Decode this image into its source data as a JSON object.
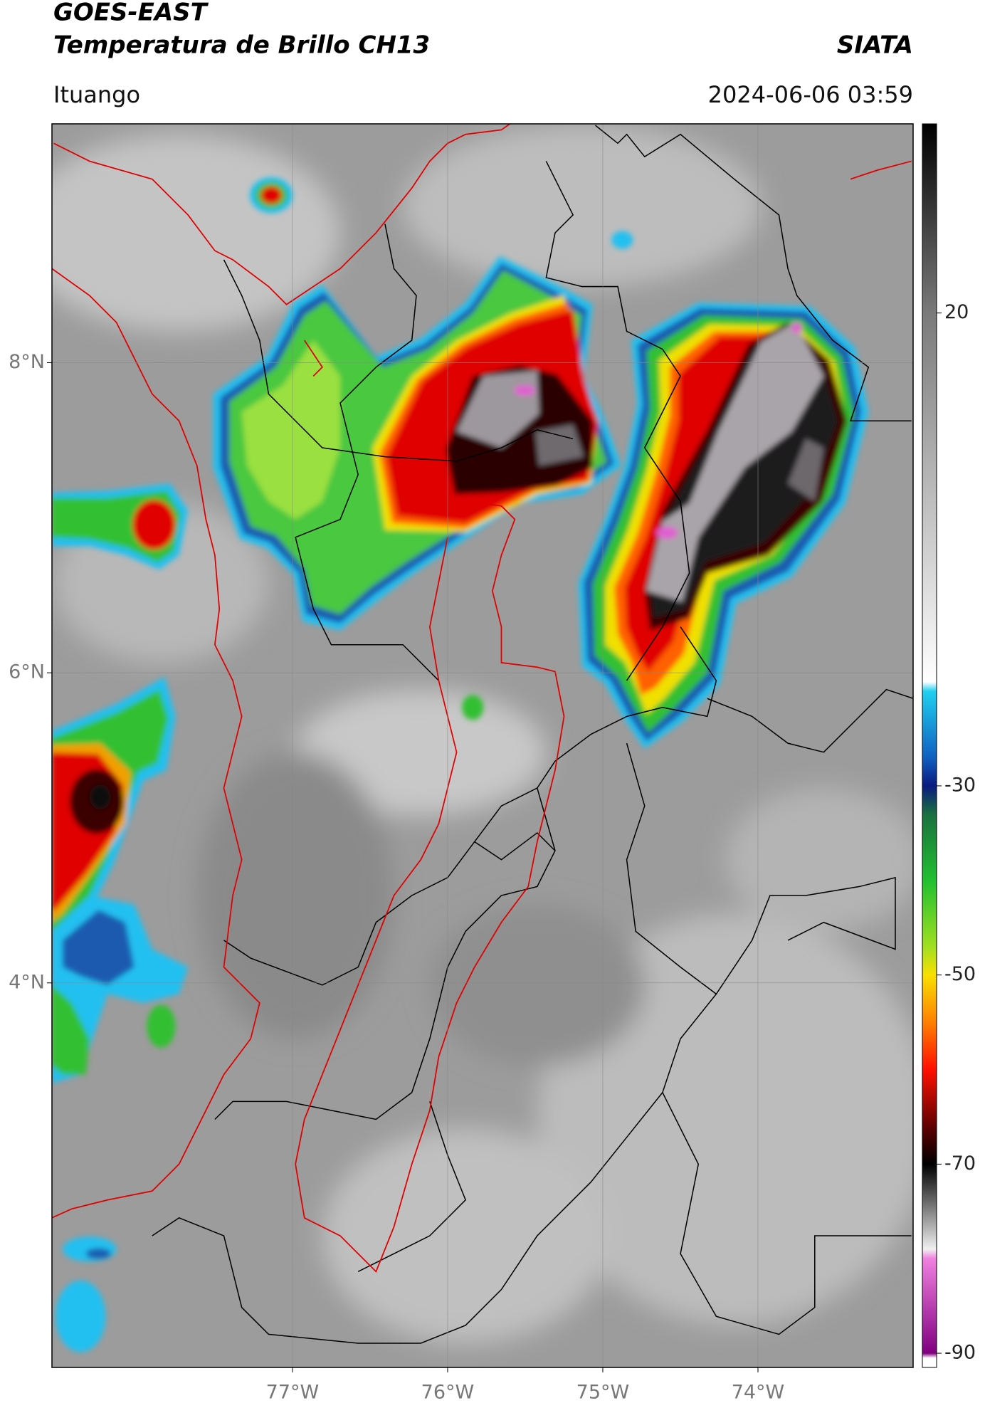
{
  "chart_data": {
    "type": "map",
    "title_lines": [
      "GOES-EAST",
      "Temperatura de Brillo CH13"
    ],
    "source": "SIATA",
    "location": "Ituango",
    "timestamp": "2024-06-06 03:59",
    "xlim": [
      -78.55,
      -73.0
    ],
    "ylim": [
      1.52,
      9.54
    ],
    "xticks": [
      {
        "value": -77,
        "label": "77°W"
      },
      {
        "value": -76,
        "label": "76°W"
      },
      {
        "value": -75,
        "label": "75°W"
      },
      {
        "value": -74,
        "label": "74°W"
      }
    ],
    "yticks": [
      {
        "value": 8,
        "label": "8°N"
      },
      {
        "value": 6,
        "label": "6°N"
      },
      {
        "value": 4,
        "label": "4°N"
      }
    ],
    "grid": true,
    "colorbar": {
      "lim": [
        -91.5,
        40
      ],
      "ticks": [
        20,
        -30,
        -50,
        -70,
        -90
      ],
      "colormap": [
        {
          "value": 40,
          "color": "#000000"
        },
        {
          "value": 20,
          "color": "#7a7a7a"
        },
        {
          "value": -19,
          "color": "#ffffff"
        },
        {
          "value": -20,
          "color": "#20d0f0"
        },
        {
          "value": -27,
          "color": "#1060c0"
        },
        {
          "value": -30,
          "color": "#0a1a80"
        },
        {
          "value": -33,
          "color": "#1a7040"
        },
        {
          "value": -40,
          "color": "#20c030"
        },
        {
          "value": -47,
          "color": "#a0e020"
        },
        {
          "value": -50,
          "color": "#f8e000"
        },
        {
          "value": -55,
          "color": "#ff8000"
        },
        {
          "value": -60,
          "color": "#ff1000"
        },
        {
          "value": -66,
          "color": "#600000"
        },
        {
          "value": -70,
          "color": "#000000"
        },
        {
          "value": -76,
          "color": "#a0a0a0"
        },
        {
          "value": -79,
          "color": "#f0f0f0"
        },
        {
          "value": -80,
          "color": "#f080e0"
        },
        {
          "value": -90,
          "color": "#800080"
        },
        {
          "value": -90.5,
          "color": "#ffffff"
        }
      ]
    }
  }
}
